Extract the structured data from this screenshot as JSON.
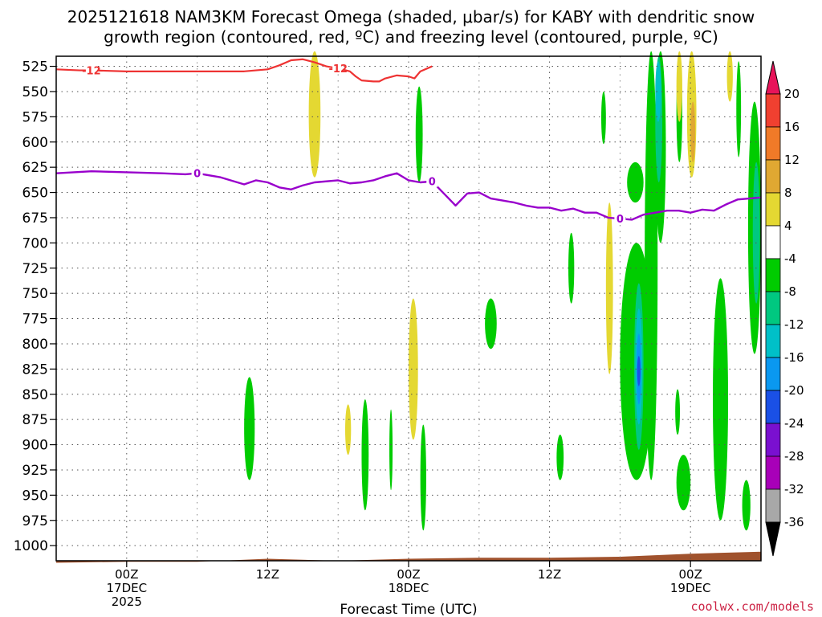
{
  "chart_data": {
    "type": "heatmap",
    "title_line1": "2025121618 NAM3KM Forecast Omega (shaded, μbar/s) for KABY with dendritic snow",
    "title_line2": "growth region (contoured, red, ºC) and freezing level (contoured, purple, ºC)",
    "xlabel": "Forecast Time (UTC)",
    "credit": "coolwx.com/models",
    "y_axis": {
      "scale": "pressure (mb), decreasing upward",
      "ticks": [
        525,
        550,
        575,
        600,
        625,
        650,
        675,
        700,
        725,
        750,
        775,
        800,
        825,
        850,
        875,
        900,
        925,
        950,
        975,
        1000
      ],
      "range": [
        1015,
        515
      ]
    },
    "x_axis": {
      "range_hours": [
        -6,
        54
      ],
      "tick_hours": [
        0,
        12,
        24,
        36,
        48
      ],
      "tick_labels": [
        [
          "00Z",
          "17DEC",
          "2025"
        ],
        [
          "12Z"
        ],
        [
          "00Z",
          "18DEC"
        ],
        [
          "12Z"
        ],
        [
          "00Z",
          "19DEC"
        ]
      ]
    },
    "grid": true,
    "colorbar": {
      "labels": [
        "20",
        "16",
        "12",
        "8",
        "4",
        "-4",
        "-8",
        "-12",
        "-16",
        "-20",
        "-24",
        "-28",
        "-32",
        "-36"
      ],
      "colors": [
        "#e8145a",
        "#f04030",
        "#f07a28",
        "#e0a832",
        "#e4d832",
        "#ffffff",
        "#00cc00",
        "#00c880",
        "#00c0c8",
        "#0a98f0",
        "#1a50e6",
        "#7a10d0",
        "#a800b8",
        "#a8a8a8",
        "#000000"
      ]
    },
    "freezing_level": {
      "label": "0",
      "color": "#9900cc",
      "x": [
        -6,
        -3,
        0,
        3,
        5,
        6,
        8,
        10,
        11,
        12,
        13,
        14,
        15,
        16,
        18,
        19,
        20,
        21,
        22,
        23,
        24,
        25,
        26,
        27,
        28,
        29,
        30,
        31,
        32,
        33,
        34,
        35,
        36,
        37,
        38,
        39,
        40,
        41,
        42,
        43,
        44,
        45,
        46,
        47,
        48,
        49,
        50,
        51,
        52,
        53,
        54
      ],
      "y": [
        631,
        629,
        630,
        631,
        632,
        631,
        635,
        642,
        638,
        640,
        645,
        647,
        643,
        640,
        638,
        641,
        640,
        638,
        634,
        631,
        638,
        640,
        639,
        651,
        663,
        651,
        650,
        656,
        658,
        660,
        663,
        665,
        665,
        668,
        666,
        670,
        670,
        675,
        676,
        677,
        672,
        670,
        668,
        668,
        670,
        667,
        668,
        662,
        657,
        656,
        655
      ]
    },
    "dgz_contour": {
      "label": "-12",
      "color": "#ee3333",
      "x": [
        -6,
        -4,
        -3,
        0,
        3,
        6,
        10,
        12,
        13,
        14,
        15,
        16,
        17,
        18,
        19,
        19.5,
        20,
        21,
        21.5,
        22,
        23,
        24,
        24.5,
        25,
        26
      ],
      "y": [
        528,
        529,
        529,
        530,
        530,
        530,
        530,
        528,
        524,
        519,
        518,
        521,
        525,
        527,
        530,
        535,
        539,
        540,
        540,
        537,
        534,
        535,
        537,
        530,
        525
      ]
    },
    "omega_regions": [
      {
        "level": -4,
        "color": "#00cc00",
        "x": [
          40.4,
          40.8
        ],
        "p": [
          550,
          602
        ]
      },
      {
        "level": -4,
        "color": "#00cc00",
        "x": [
          24.6,
          25.2
        ],
        "p": [
          545,
          640
        ]
      },
      {
        "level": -4,
        "color": "#00cc00",
        "x": [
          44.1,
          45.2
        ],
        "p": [
          510,
          935
        ]
      },
      {
        "level": -4,
        "color": "#00cc00",
        "x": [
          42.6,
          44.0
        ],
        "p": [
          620,
          660
        ]
      },
      {
        "level": -4,
        "color": "#00cc00",
        "x": [
          45.0,
          45.9
        ],
        "p": [
          510,
          700
        ]
      },
      {
        "level": -4,
        "color": "#00cc00",
        "x": [
          42.0,
          44.8
        ],
        "p": [
          700,
          935
        ]
      },
      {
        "level": -4,
        "color": "#00cc00",
        "x": [
          46.8,
          47.3
        ],
        "p": [
          520,
          620
        ]
      },
      {
        "level": -4,
        "color": "#00cc00",
        "x": [
          49.9,
          51.2
        ],
        "p": [
          735,
          975
        ]
      },
      {
        "level": -4,
        "color": "#00cc00",
        "x": [
          51.9,
          52.3
        ],
        "p": [
          520,
          615
        ]
      },
      {
        "level": -4,
        "color": "#00cc00",
        "x": [
          52.9,
          54.0
        ],
        "p": [
          560,
          810
        ]
      },
      {
        "level": -4,
        "color": "#00cc00",
        "x": [
          46.8,
          48.0
        ],
        "p": [
          910,
          965
        ]
      },
      {
        "level": -4,
        "color": "#00cc00",
        "x": [
          46.7,
          47.1
        ],
        "p": [
          845,
          890
        ]
      },
      {
        "level": -4,
        "color": "#00cc00",
        "x": [
          52.4,
          53.1
        ],
        "p": [
          935,
          985
        ]
      },
      {
        "level": -4,
        "color": "#00cc00",
        "x": [
          20.0,
          20.6
        ],
        "p": [
          855,
          965
        ]
      },
      {
        "level": -4,
        "color": "#00cc00",
        "x": [
          22.4,
          22.6
        ],
        "p": [
          865,
          945
        ]
      },
      {
        "level": -4,
        "color": "#00cc00",
        "x": [
          30.5,
          31.5
        ],
        "p": [
          755,
          805
        ]
      },
      {
        "level": -4,
        "color": "#00cc00",
        "x": [
          37.6,
          38.1
        ],
        "p": [
          690,
          760
        ]
      },
      {
        "level": -4,
        "color": "#00cc00",
        "x": [
          25.0,
          25.5
        ],
        "p": [
          880,
          985
        ]
      },
      {
        "level": -4,
        "color": "#00cc00",
        "x": [
          10.0,
          10.9
        ],
        "p": [
          833,
          935
        ]
      },
      {
        "level": -4,
        "color": "#00cc00",
        "x": [
          36.6,
          37.2
        ],
        "p": [
          890,
          935
        ]
      },
      {
        "level": -8,
        "color": "#00c880",
        "x": [
          43.2,
          44.0
        ],
        "p": [
          740,
          905
        ]
      },
      {
        "level": -8,
        "color": "#00c880",
        "x": [
          45.0,
          45.6
        ],
        "p": [
          515,
          640
        ]
      },
      {
        "level": -8,
        "color": "#00c880",
        "x": [
          53.3,
          53.9
        ],
        "p": [
          620,
          760
        ]
      },
      {
        "level": -12,
        "color": "#00c0c8",
        "x": [
          43.3,
          43.9
        ],
        "p": [
          765,
          880
        ]
      },
      {
        "level": -12,
        "color": "#00c0c8",
        "x": [
          45.0,
          45.5
        ],
        "p": [
          520,
          580
        ]
      },
      {
        "level": -16,
        "color": "#0a98f0",
        "x": [
          43.4,
          43.8
        ],
        "p": [
          790,
          860
        ]
      },
      {
        "level": -20,
        "color": "#1a50e6",
        "x": [
          43.5,
          43.7
        ],
        "p": [
          812,
          842
        ]
      },
      {
        "level": 4,
        "color": "#e4d832",
        "x": [
          15.5,
          16.5
        ],
        "p": [
          510,
          635
        ]
      },
      {
        "level": 4,
        "color": "#e4d832",
        "x": [
          46.8,
          47.3
        ],
        "p": [
          510,
          580
        ]
      },
      {
        "level": 4,
        "color": "#e4d832",
        "x": [
          47.7,
          48.5
        ],
        "p": [
          510,
          635
        ]
      },
      {
        "level": 4,
        "color": "#e4d832",
        "x": [
          51.1,
          51.6
        ],
        "p": [
          510,
          560
        ]
      },
      {
        "level": 4,
        "color": "#e4d832",
        "x": [
          24.0,
          24.8
        ],
        "p": [
          755,
          895
        ]
      },
      {
        "level": 4,
        "color": "#e4d832",
        "x": [
          40.8,
          41.4
        ],
        "p": [
          660,
          830
        ]
      },
      {
        "level": 4,
        "color": "#e4d832",
        "x": [
          18.6,
          19.1
        ],
        "p": [
          860,
          910
        ]
      },
      {
        "level": 8,
        "color": "#e0a832",
        "x": [
          48.0,
          48.4
        ],
        "p": [
          560,
          620
        ]
      }
    ],
    "terrain": {
      "color": "#a0522d",
      "x": [
        -6,
        0,
        6,
        12,
        18,
        24,
        30,
        36,
        42,
        48,
        54
      ],
      "p": [
        1017,
        1016,
        1016,
        1013,
        1015,
        1013,
        1012,
        1012,
        1011,
        1008,
        1006
      ]
    }
  }
}
